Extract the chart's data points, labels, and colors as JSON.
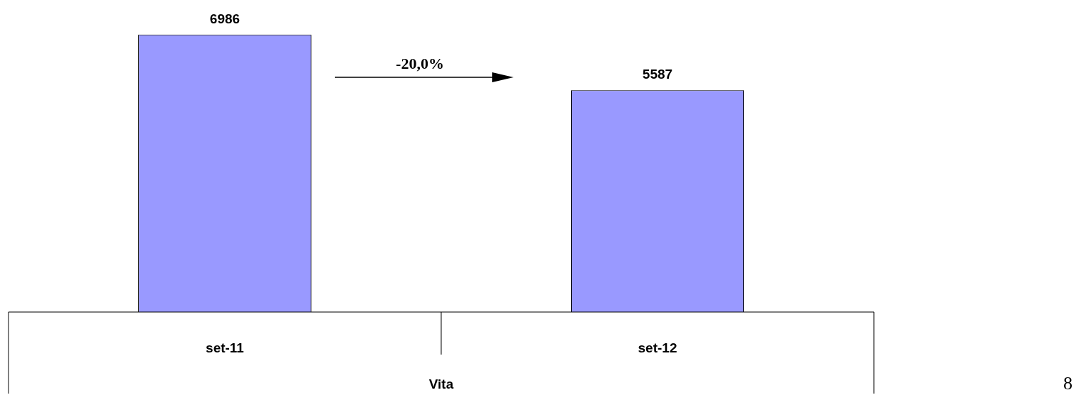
{
  "chart_data": {
    "type": "bar",
    "categories": [
      "set-11",
      "set-12"
    ],
    "xlabel": "Vita",
    "series": [
      {
        "color": "#9999ff",
        "values": [
          6986,
          5587
        ]
      }
    ],
    "data_labels": true,
    "legend": false,
    "annotations": [
      "-20,0%",
      "8"
    ]
  }
}
